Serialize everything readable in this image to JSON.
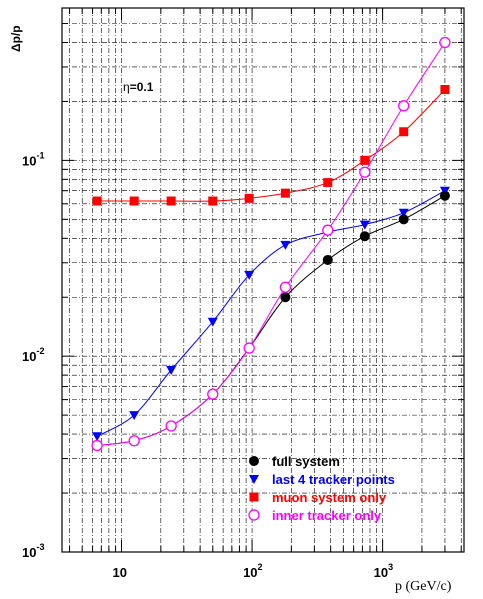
{
  "chart_data": {
    "type": "line",
    "xscale": "log",
    "yscale": "log",
    "xlim": [
      3.5,
      4200
    ],
    "ylim": [
      0.001,
      0.6
    ],
    "xlabel": "p (GeV/c)",
    "ylabel": "Δp/p",
    "annotation": {
      "prefix": "η",
      "value": "=0.1"
    },
    "grid": true,
    "legend_position": "bottom-right",
    "x_ticks": [
      {
        "value": 10,
        "base": "10",
        "exp": ""
      },
      {
        "value": 100,
        "base": "10",
        "exp": "2"
      },
      {
        "value": 1000,
        "base": "10",
        "exp": "3"
      }
    ],
    "y_ticks": [
      {
        "value": 0.001,
        "base": "10",
        "exp": "-3"
      },
      {
        "value": 0.01,
        "base": "10",
        "exp": "-2"
      },
      {
        "value": 0.1,
        "base": "10",
        "exp": "-1"
      }
    ],
    "x": [
      6.5,
      12.5,
      24,
      50,
      95,
      180,
      380,
      730,
      1450,
      3000
    ],
    "series": [
      {
        "name": "full system",
        "marker": "circle-filled",
        "color": "#000000",
        "values": [
          0.0035,
          0.0037,
          0.0044,
          0.0064,
          0.011,
          0.02,
          0.031,
          0.041,
          0.05,
          0.066
        ]
      },
      {
        "name": "last 4 tracker points",
        "marker": "triangle-down",
        "color": "#0000ff",
        "values": [
          0.0039,
          0.005,
          0.0085,
          0.015,
          0.026,
          0.037,
          0.043,
          0.047,
          0.054,
          0.07
        ]
      },
      {
        "name": "muon system only",
        "marker": "square",
        "color": "#ff0000",
        "values": [
          0.062,
          0.062,
          0.062,
          0.062,
          0.064,
          0.068,
          0.077,
          0.1,
          0.14,
          0.23
        ]
      },
      {
        "name": "inner tracker only",
        "marker": "circle-open",
        "color": "#ff00ff",
        "values": [
          0.0035,
          0.0037,
          0.0044,
          0.0064,
          0.011,
          0.0225,
          0.044,
          0.087,
          0.19,
          0.4
        ]
      }
    ]
  }
}
